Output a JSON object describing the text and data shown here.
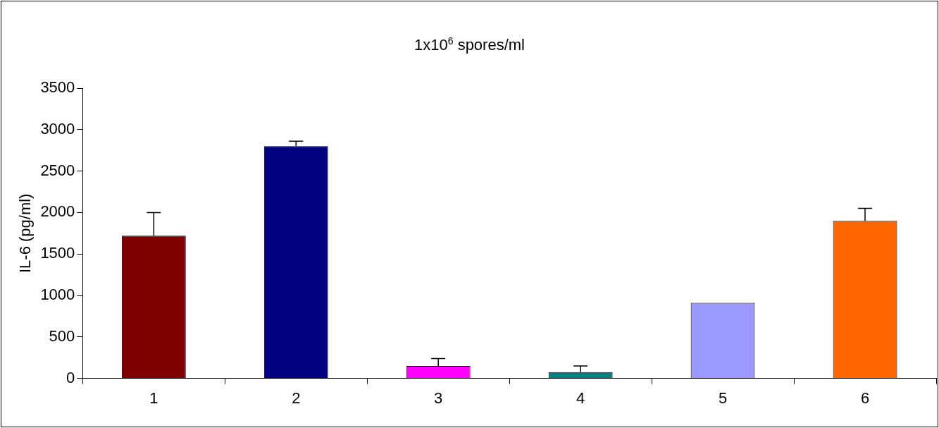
{
  "chart_data": {
    "type": "bar",
    "title": "1x10$^{6}$ spores/ml",
    "ylabel": "IL-6 (pg/ml)",
    "categories": [
      "1",
      "2",
      "3",
      "4",
      "5",
      "6"
    ],
    "values": [
      1720,
      2800,
      150,
      75,
      910,
      1900
    ],
    "colors": [
      "#800000",
      "#000080",
      "#ff00ff",
      "#008080",
      "#9999ff",
      "#ff6600"
    ],
    "errors": [
      [
        1720,
        2000
      ],
      [
        2800,
        2860
      ],
      [
        150,
        240
      ],
      [
        75,
        150
      ],
      null,
      [
        1900,
        2050
      ]
    ],
    "ylim": [
      0,
      3500
    ],
    "yticks": [
      0,
      500,
      1000,
      1500,
      2000,
      2500,
      3000,
      3500
    ],
    "grid": false,
    "legend": false
  }
}
